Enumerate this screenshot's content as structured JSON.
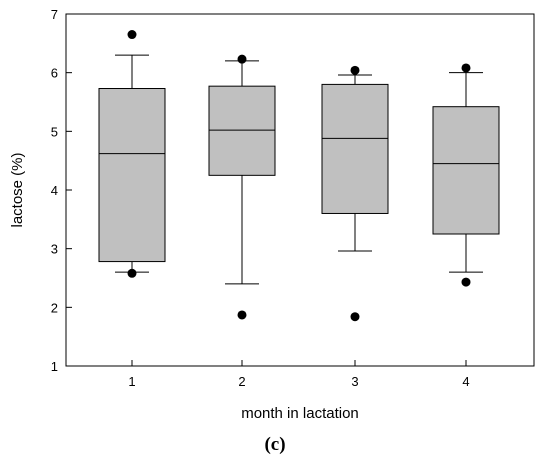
{
  "chart_data": {
    "type": "box",
    "xlabel": "month in lactation",
    "ylabel": "lactose (%)",
    "ylim": [
      1,
      7
    ],
    "yticks": [
      "1",
      "2",
      "3",
      "4",
      "5",
      "6",
      "7"
    ],
    "categories": [
      "1",
      "2",
      "3",
      "4"
    ],
    "caption": "(c)",
    "boxes": [
      {
        "category": "1",
        "whisker_low": 2.6,
        "q1": 2.78,
        "median": 4.62,
        "q3": 5.73,
        "whisker_high": 6.3,
        "outliers": [
          6.65,
          2.58
        ]
      },
      {
        "category": "2",
        "whisker_low": 2.4,
        "q1": 4.25,
        "median": 5.02,
        "q3": 5.77,
        "whisker_high": 6.2,
        "outliers": [
          6.23,
          1.87
        ]
      },
      {
        "category": "3",
        "whisker_low": 2.96,
        "q1": 3.6,
        "median": 4.88,
        "q3": 5.8,
        "whisker_high": 5.96,
        "outliers": [
          6.04,
          1.84
        ]
      },
      {
        "category": "4",
        "whisker_low": 2.6,
        "q1": 3.25,
        "median": 4.45,
        "q3": 5.42,
        "whisker_high": 6.0,
        "outliers": [
          6.08,
          2.43
        ]
      }
    ],
    "box_color": "#c0c0c0",
    "grid": false,
    "legend": "none"
  }
}
